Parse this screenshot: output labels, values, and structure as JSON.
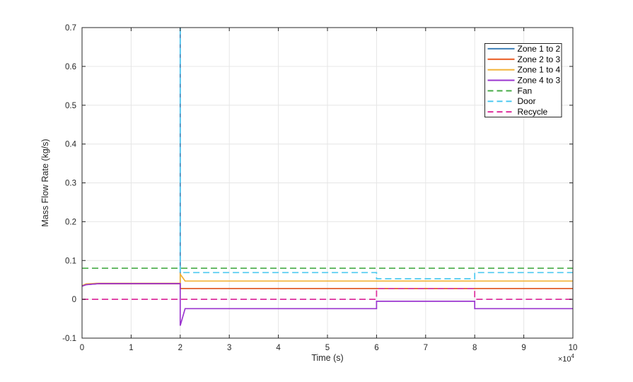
{
  "figure": {
    "background_color": "#ffffff",
    "axis_color": "#262626",
    "grid_color": "#e6e6e6",
    "text_color": "#262626"
  },
  "chart_data": {
    "type": "line",
    "title": "",
    "xlabel": "Time (s)",
    "ylabel": "Mass Flow Rate (kg/s)",
    "x_axis_multiplier": {
      "base": "×10",
      "exponent": "4"
    },
    "xlim": [
      0,
      10
    ],
    "ylim": [
      -0.1,
      0.7
    ],
    "xticks": {
      "values": [
        0,
        1,
        2,
        3,
        4,
        5,
        6,
        7,
        8,
        9,
        10
      ],
      "labels": [
        "0",
        "1",
        "2",
        "3",
        "4",
        "5",
        "6",
        "7",
        "8",
        "9",
        "10"
      ]
    },
    "yticks": {
      "values": [
        -0.1,
        0,
        0.1,
        0.2,
        0.3,
        0.4,
        0.5,
        0.6,
        0.7
      ],
      "labels": [
        "-0.1",
        "0",
        "0.1",
        "0.2",
        "0.3",
        "0.4",
        "0.5",
        "0.6",
        "0.7"
      ]
    },
    "grid": true,
    "legend": {
      "position": "top-right",
      "border_color": "#262626",
      "background": "#ffffff"
    },
    "series": [
      {
        "name": "Zone 1 to 2",
        "color": "#3f80b7",
        "linestyle": "solid",
        "points": [
          [
            0,
            0.034
          ],
          [
            0.08,
            0.038
          ],
          [
            0.3,
            0.04
          ],
          [
            2,
            0.04
          ],
          [
            2,
            0.75
          ],
          [
            2,
            0.028
          ],
          [
            10,
            0.028
          ]
        ]
      },
      {
        "name": "Zone 2 to 3",
        "color": "#e8581f",
        "linestyle": "solid",
        "points": [
          [
            0,
            0.034
          ],
          [
            0.08,
            0.038
          ],
          [
            0.3,
            0.04
          ],
          [
            2,
            0.04
          ],
          [
            2,
            0.028
          ],
          [
            10,
            0.028
          ]
        ]
      },
      {
        "name": "Zone 1 to 4",
        "color": "#f2b235",
        "linestyle": "solid",
        "points": [
          [
            0,
            0.035
          ],
          [
            0.08,
            0.0395
          ],
          [
            0.3,
            0.0412
          ],
          [
            2,
            0.0412
          ],
          [
            2,
            0.065
          ],
          [
            2.1,
            0.047
          ],
          [
            10,
            0.047
          ]
        ]
      },
      {
        "name": "Zone 4 to 3",
        "color": "#9b36cf",
        "linestyle": "solid",
        "points": [
          [
            0,
            0.034
          ],
          [
            0.08,
            0.0375
          ],
          [
            0.35,
            0.0405
          ],
          [
            2,
            0.0405
          ],
          [
            2,
            -0.068
          ],
          [
            2.1,
            -0.024
          ],
          [
            6,
            -0.024
          ],
          [
            6,
            -0.005
          ],
          [
            8,
            -0.005
          ],
          [
            8,
            -0.024
          ],
          [
            10,
            -0.024
          ]
        ]
      },
      {
        "name": "Fan",
        "color": "#48ab48",
        "linestyle": "dashed",
        "points": [
          [
            0,
            0.08
          ],
          [
            10,
            0.08
          ]
        ]
      },
      {
        "name": "Door",
        "color": "#4ec9f0",
        "linestyle": "dashed",
        "points": [
          [
            2,
            0.75
          ],
          [
            2,
            0.069
          ],
          [
            6,
            0.069
          ],
          [
            6,
            0.053
          ],
          [
            8,
            0.053
          ],
          [
            8,
            0.069
          ],
          [
            10,
            0.069
          ]
        ]
      },
      {
        "name": "Recycle",
        "color": "#dd2f9d",
        "linestyle": "dashed",
        "points": [
          [
            0,
            0
          ],
          [
            6,
            0
          ],
          [
            6,
            0.028
          ],
          [
            8,
            0.028
          ],
          [
            8,
            0
          ],
          [
            10,
            0
          ]
        ]
      }
    ]
  }
}
